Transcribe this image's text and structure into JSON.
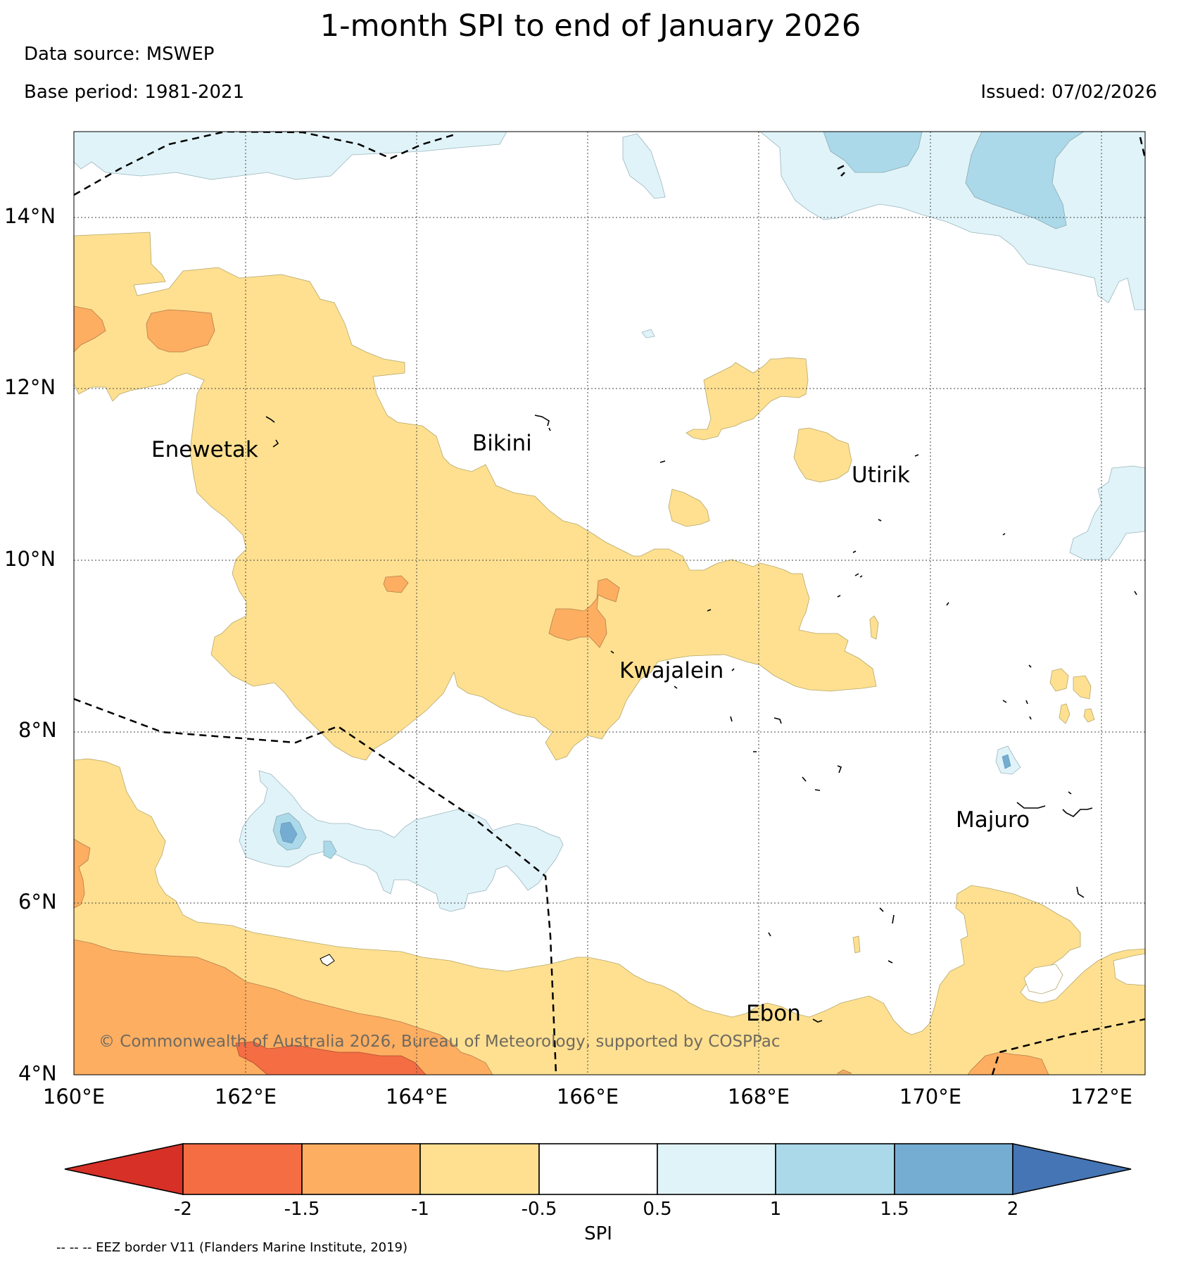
{
  "header": {
    "title": "1-month SPI to end of January 2026",
    "data_source": "Data source: MSWEP",
    "base_period": "Base period: 1981-2021",
    "issued": "Issued: 07/02/2026"
  },
  "map": {
    "lat_range": [
      4,
      15
    ],
    "lon_range": [
      160,
      172.5
    ],
    "lat_ticks": [
      {
        "value": 14,
        "label": "14°N"
      },
      {
        "value": 12,
        "label": "12°N"
      },
      {
        "value": 10,
        "label": "10°N"
      },
      {
        "value": 8,
        "label": "8°N"
      },
      {
        "value": 6,
        "label": "6°N"
      },
      {
        "value": 4,
        "label": "4°N"
      }
    ],
    "lon_ticks": [
      {
        "value": 160,
        "label": "160°E"
      },
      {
        "value": 162,
        "label": "162°E"
      },
      {
        "value": 164,
        "label": "164°E"
      },
      {
        "value": 166,
        "label": "166°E"
      },
      {
        "value": 168,
        "label": "168°E"
      },
      {
        "value": 170,
        "label": "170°E"
      },
      {
        "value": 172,
        "label": "172°E"
      }
    ],
    "places": [
      {
        "name": "Enewetak",
        "lon": 161.6,
        "lat": 11.3
      },
      {
        "name": "Bikini",
        "lon": 165.1,
        "lat": 11.35
      },
      {
        "name": "Utirik",
        "lon": 169.5,
        "lat": 11.0
      },
      {
        "name": "Kwajalein",
        "lon": 166.6,
        "lat": 8.7
      },
      {
        "name": "Majuro",
        "lon": 170.8,
        "lat": 7.0
      },
      {
        "name": "Ebon",
        "lon": 168.2,
        "lat": 4.7
      }
    ],
    "copyright": "© Commonwealth of Australia 2026, Bureau of Meteorology, supported by COSPPac"
  },
  "colorbar": {
    "label": "SPI",
    "ticks": [
      "-2",
      "-1.5",
      "-1",
      "-0.5",
      "0.5",
      "1",
      "1.5",
      "2"
    ],
    "colors": [
      "#d73027",
      "#f46d43",
      "#fdae61",
      "#fee090",
      "#ffffff",
      "#e0f3f8",
      "#abd9e9",
      "#74add1",
      "#4575b4"
    ]
  },
  "footnote": "-- -- -- EEZ border V11 (Flanders Marine Institute, 2019)"
}
